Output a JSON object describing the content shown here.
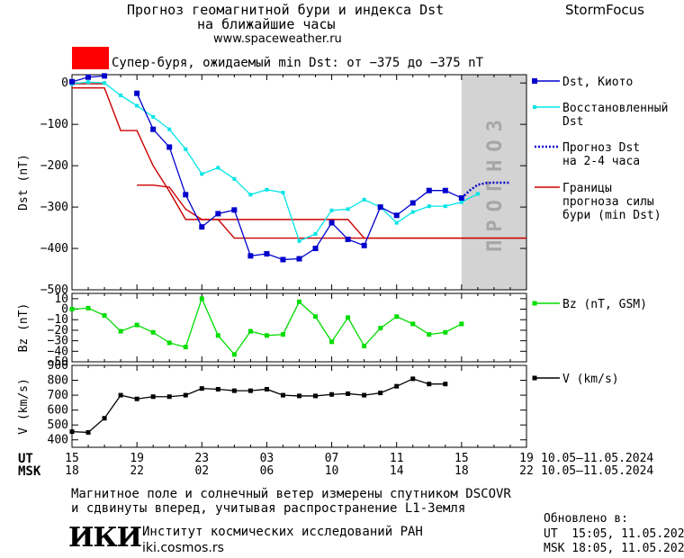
{
  "header": {
    "title_line1": "Прогноз геомагнитной бури и индекса Dst",
    "title_line2": "на ближайшие часы",
    "site": "www.spaceweather.ru",
    "brand": "StormFocus",
    "alert_text": "Супер-буря, ожидаемый min Dst: от −375 до −375 nT",
    "alert_color": "#ff0000"
  },
  "forecast_label": "ПРОГНОЗ",
  "time_axis": {
    "ut_label": "UT",
    "msk_label": "MSK",
    "ut_ticks": [
      "15",
      "19",
      "23",
      "03",
      "07",
      "11",
      "15",
      "19"
    ],
    "msk_ticks": [
      "18",
      "22",
      "02",
      "06",
      "10",
      "14",
      "18",
      "22"
    ],
    "ut_range": "10.05–11.05.2024",
    "msk_range": "10.05–11.05.2024"
  },
  "footer": {
    "line1": "Магнитное поле и солнечный ветер измерены спутником DSCOVR",
    "line2": "и сдвинуты вперед, учитывая распространение L1-Земля",
    "logo": "ИКИ",
    "institute": "Институт космических исследований РАН",
    "institute_url": "iki.cosmos.rs",
    "updated_label": "Обновлено в:",
    "updated_ut": "UT  15:05, 11.05.2024",
    "updated_msk": "MSK 18:05, 11.05.2024"
  },
  "colors": {
    "dst": "#0000cc",
    "restored": "#00e5e5",
    "forecast": "#0000cc",
    "bounds": "#cc0000",
    "bz": "#00dd00",
    "v": "#000000",
    "forecast_band": "#d3d3d3"
  },
  "chart_data": [
    {
      "type": "line",
      "ylabel": "Dst (nT)",
      "ylim": [
        -500,
        20
      ],
      "yticks": [
        0,
        -100,
        -200,
        -300,
        -400,
        -500
      ],
      "ytick_labels": [
        "0",
        "−100",
        "−200",
        "−300",
        "−400",
        "−500"
      ],
      "x_unit": "hours since 15 UT 10.05.2024",
      "xlim": [
        0,
        28
      ],
      "forecast_region_x": [
        24,
        28
      ],
      "series": [
        {
          "name": "Dst, Киото",
          "x": [
            0,
            1,
            2,
            3,
            4,
            5,
            6,
            7,
            8,
            9,
            10,
            11,
            12,
            13,
            14,
            15,
            16,
            17,
            18,
            19,
            20,
            21,
            22,
            23,
            24
          ],
          "y": [
            3,
            14,
            17,
            null,
            -25,
            -112,
            -155,
            -270,
            -348,
            -316,
            -307,
            -418,
            -413,
            -427,
            -425,
            -400,
            -338,
            -378,
            -393,
            -300,
            -320,
            -290,
            -260,
            -260,
            -278
          ]
        },
        {
          "name": "Восстановленный Dst",
          "x": [
            0,
            1,
            2,
            3,
            4,
            5,
            6,
            7,
            8,
            9,
            10,
            11,
            12,
            13,
            14,
            15,
            16,
            17,
            18,
            19,
            20,
            21,
            22,
            23,
            24,
            25
          ],
          "y": [
            -2,
            2,
            0,
            -30,
            -55,
            -82,
            -112,
            -160,
            -220,
            -205,
            -232,
            -270,
            -258,
            -265,
            -382,
            -365,
            -308,
            -305,
            -282,
            -300,
            -338,
            -312,
            -298,
            -298,
            -288,
            -268
          ]
        },
        {
          "name": "Прогноз Dst на 2-4 часа",
          "x": [
            24,
            24.5,
            25,
            25.5,
            26,
            26.5,
            27
          ],
          "y": [
            -278,
            -260,
            -246,
            -242,
            -241,
            -241,
            -241
          ]
        },
        {
          "name": "Границы прогноза силы бури (min Dst)",
          "x": [
            0,
            2,
            3,
            4,
            5,
            6,
            7,
            8,
            9,
            10,
            11,
            12,
            13,
            14,
            15,
            16,
            17,
            18,
            19,
            20,
            21,
            22,
            23,
            24,
            25,
            26,
            27,
            28
          ],
          "y": [
            -12,
            -12,
            -115,
            -115,
            -200,
            -262,
            -330,
            -330,
            -330,
            -330,
            -330,
            -330,
            -330,
            -330,
            -330,
            -330,
            -330,
            -375,
            -375,
            -375,
            -375,
            -375,
            -375,
            -375,
            -375,
            -375,
            -375,
            -375
          ]
        },
        {
          "name": "Границы прогноза силы бури (min Dst)",
          "x": [
            0,
            2,
            3,
            4,
            5,
            6,
            7,
            8,
            9,
            10,
            11,
            12,
            13,
            14,
            15,
            16,
            17,
            18,
            19,
            20,
            21,
            22,
            23,
            24,
            25,
            26,
            27,
            28
          ],
          "y": [
            -2,
            -2,
            null,
            -247,
            -247,
            -252,
            -305,
            -330,
            -330,
            -375,
            -375,
            -375,
            -375,
            -375,
            -375,
            -375,
            -375,
            -375,
            -375,
            -375,
            -375,
            -375,
            -375,
            -375,
            -375,
            -375,
            -375,
            -375
          ]
        }
      ]
    },
    {
      "type": "line",
      "ylabel": "Bz (nT)",
      "ylim": [
        -50,
        15
      ],
      "yticks": [
        10,
        0,
        -10,
        -20,
        -30,
        -40,
        -50
      ],
      "ytick_labels": [
        "10",
        "0",
        "−10",
        "−20",
        "−30",
        "−40",
        "−50"
      ],
      "xlim": [
        0,
        28
      ],
      "series": [
        {
          "name": "Bz (nT, GSM)",
          "x": [
            0,
            1,
            2,
            3,
            4,
            5,
            6,
            7,
            8,
            9,
            10,
            11,
            12,
            13,
            14,
            15,
            16,
            17,
            18,
            19,
            20,
            21,
            22,
            23,
            24,
            25
          ],
          "y": [
            0,
            1,
            -6,
            -21,
            -15,
            -22,
            -32,
            -36,
            10,
            -25,
            -43,
            -21,
            -25,
            -24,
            7,
            -7,
            -31,
            -8,
            -35,
            -18,
            -7,
            -14,
            -24,
            -22,
            -14,
            null
          ]
        }
      ]
    },
    {
      "type": "line",
      "ylabel": "V (km/s)",
      "ylim": [
        350,
        900
      ],
      "yticks": [
        900,
        800,
        700,
        600,
        500,
        400
      ],
      "ytick_labels": [
        "900",
        "800",
        "700",
        "600",
        "500",
        "400"
      ],
      "xlim": [
        0,
        28
      ],
      "series": [
        {
          "name": "V (km/s)",
          "x": [
            0,
            1,
            2,
            3,
            4,
            5,
            6,
            7,
            8,
            9,
            10,
            11,
            12,
            13,
            14,
            15,
            16,
            17,
            18,
            19,
            20,
            21,
            22,
            23,
            24,
            25
          ],
          "y": [
            455,
            450,
            545,
            700,
            675,
            690,
            690,
            700,
            745,
            740,
            730,
            730,
            740,
            700,
            695,
            695,
            705,
            710,
            700,
            715,
            760,
            810,
            775,
            775,
            null,
            null
          ]
        }
      ]
    }
  ]
}
